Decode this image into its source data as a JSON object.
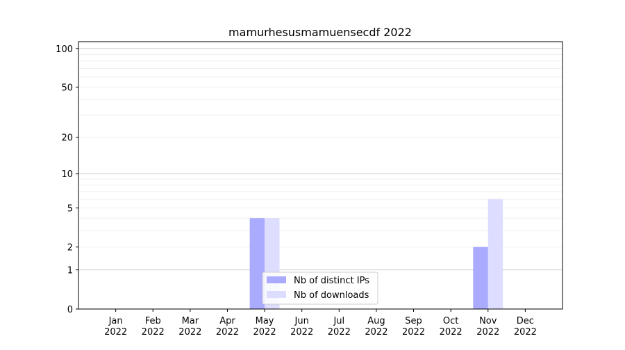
{
  "chart_data": {
    "type": "bar",
    "title": "mamurhesusmamuensecdf 2022",
    "xlabel": "",
    "ylabel": "",
    "y_scale": "log(1+y)",
    "ylim": [
      0,
      113
    ],
    "yticks": [
      0,
      1,
      2,
      5,
      10,
      20,
      50,
      100
    ],
    "grid": true,
    "legend_position": "lower center",
    "categories": [
      [
        "Jan",
        "2022"
      ],
      [
        "Feb",
        "2022"
      ],
      [
        "Mar",
        "2022"
      ],
      [
        "Apr",
        "2022"
      ],
      [
        "May",
        "2022"
      ],
      [
        "Jun",
        "2022"
      ],
      [
        "Jul",
        "2022"
      ],
      [
        "Aug",
        "2022"
      ],
      [
        "Sep",
        "2022"
      ],
      [
        "Oct",
        "2022"
      ],
      [
        "Nov",
        "2022"
      ],
      [
        "Dec",
        "2022"
      ]
    ],
    "series": [
      {
        "name": "Nb of distinct IPs",
        "color": "#aaaaff",
        "values": [
          0,
          0,
          0,
          0,
          4,
          0,
          0,
          0,
          0,
          0,
          2,
          0
        ]
      },
      {
        "name": "Nb of downloads",
        "color": "#ddddff",
        "values": [
          0,
          0,
          0,
          0,
          4,
          0,
          0,
          0,
          0,
          0,
          6,
          0
        ]
      }
    ]
  }
}
